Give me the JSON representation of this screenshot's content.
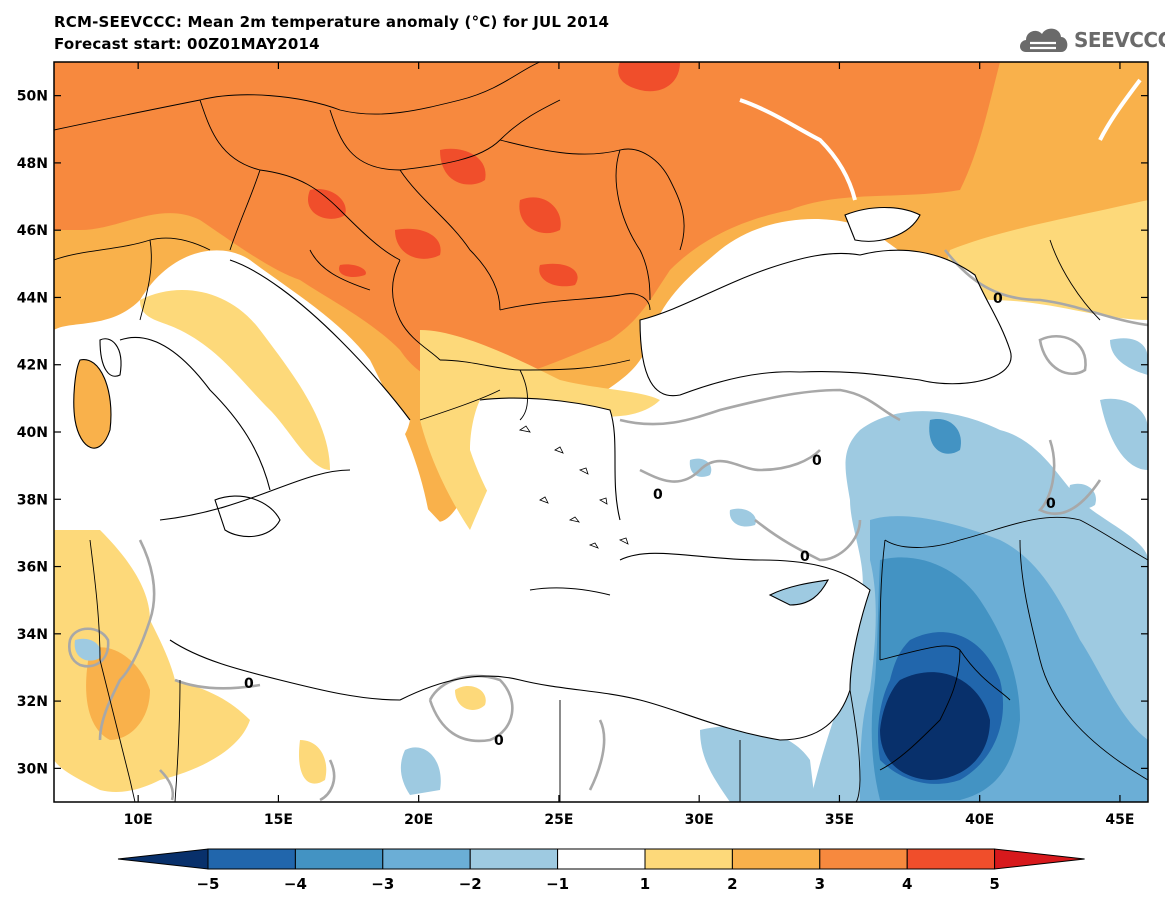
{
  "header": {
    "title": "RCM-SEEVCCC: Mean 2m temperature anomaly (°C) for JUL 2014",
    "subtitle": "Forecast start: 00Z01MAY2014"
  },
  "logo": {
    "text": "SEEVCCC",
    "icon": "cloud-icon"
  },
  "map": {
    "lon_range": [
      7,
      46
    ],
    "lat_range": [
      29,
      51
    ],
    "x_ticks": [
      "10E",
      "15E",
      "20E",
      "25E",
      "30E",
      "35E",
      "40E",
      "45E"
    ],
    "x_tick_values": [
      10,
      15,
      20,
      25,
      30,
      35,
      40,
      45
    ],
    "y_ticks": [
      "50N",
      "48N",
      "46N",
      "44N",
      "42N",
      "40N",
      "38N",
      "36N",
      "34N",
      "32N",
      "30N"
    ],
    "y_tick_values": [
      50,
      48,
      46,
      44,
      42,
      40,
      38,
      36,
      34,
      32,
      30
    ],
    "contour_label": "0"
  },
  "colorbar": {
    "labels": [
      "−5",
      "−4",
      "−3",
      "−2",
      "−1",
      "1",
      "2",
      "3",
      "4",
      "5"
    ],
    "colors": [
      "#08306b",
      "#2166ac",
      "#4393c3",
      "#6baed6",
      "#9ecae1",
      "#ffffff",
      "#fdd97a",
      "#f9b14b",
      "#f7893e",
      "#f04e2b",
      "#d7191c"
    ]
  }
}
